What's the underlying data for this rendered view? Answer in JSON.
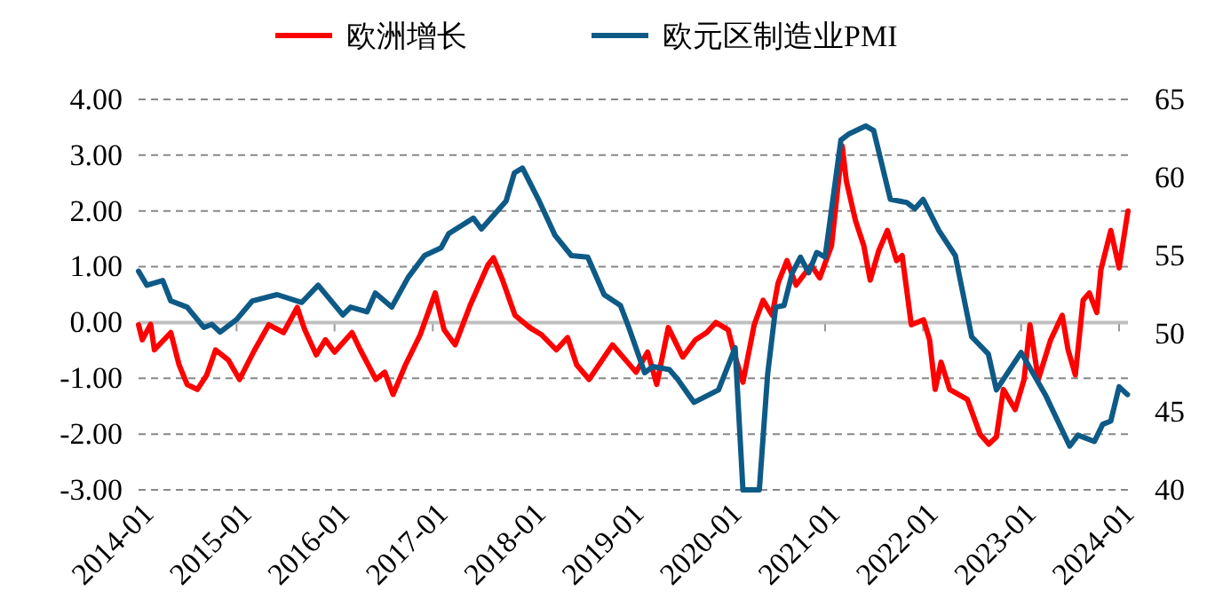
{
  "chart_data": {
    "type": "line",
    "xlim": [
      "2014-01-01",
      "2024-02-03"
    ],
    "xticks": [
      {
        "value": "2014-01-01",
        "label": "2014-01"
      },
      {
        "value": "2015-01-01",
        "label": "2015-01"
      },
      {
        "value": "2016-01-01",
        "label": "2016-01"
      },
      {
        "value": "2017-01-01",
        "label": "2017-01"
      },
      {
        "value": "2018-01-01",
        "label": "2018-01"
      },
      {
        "value": "2019-01-01",
        "label": "2019-01"
      },
      {
        "value": "2020-01-01",
        "label": "2020-01"
      },
      {
        "value": "2021-01-01",
        "label": "2021-01"
      },
      {
        "value": "2022-01-01",
        "label": "2022-01"
      },
      {
        "value": "2023-01-01",
        "label": "2023-01"
      },
      {
        "value": "2024-01-01",
        "label": "2024-01"
      }
    ],
    "ylim": [
      -3,
      4
    ],
    "yticks": [
      {
        "value": -3,
        "label": "-3.00"
      },
      {
        "value": -2,
        "label": "-2.00"
      },
      {
        "value": -1,
        "label": "-1.00"
      },
      {
        "value": 0,
        "label": "0.00"
      },
      {
        "value": 1,
        "label": "1.00"
      },
      {
        "value": 2,
        "label": "2.00"
      },
      {
        "value": 3,
        "label": "3.00"
      },
      {
        "value": 4,
        "label": "4.00"
      }
    ],
    "y2lim": [
      40,
      65
    ],
    "y2ticks": [
      40,
      45,
      50,
      55,
      60,
      65
    ],
    "ref_lines": [
      {
        "axis": "y",
        "value": 0,
        "color": "#bfbfbf"
      }
    ],
    "grid": "y",
    "legend": "top",
    "line_style": "solid",
    "marker": "none",
    "series": [
      {
        "name": "欧洲增长",
        "color": "#ff0000",
        "x": [
          "2014-01-01",
          "2014-01-15",
          "2014-02-15",
          "2014-03-01",
          "2014-05-01",
          "2014-06-01",
          "2014-07-01",
          "2014-08-08",
          "2014-09-12",
          "2014-10-15",
          "2014-12-01",
          "2015-01-12",
          "2015-03-05",
          "2015-05-01",
          "2015-06-25",
          "2015-08-15",
          "2015-09-12",
          "2015-10-25",
          "2015-11-28",
          "2016-01-01",
          "2016-03-06",
          "2016-04-06",
          "2016-06-03",
          "2016-07-06",
          "2016-08-06",
          "2016-09-21",
          "2016-11-15",
          "2017-01-10",
          "2017-02-12",
          "2017-03-25",
          "2017-05-20",
          "2017-07-25",
          "2017-08-15",
          "2017-09-18",
          "2017-11-03",
          "2017-12-28",
          "2018-02-10",
          "2018-04-06",
          "2018-05-18",
          "2018-06-21",
          "2018-08-06",
          "2018-11-01",
          "2019-01-28",
          "2019-03-12",
          "2019-04-15",
          "2019-05-28",
          "2019-07-21",
          "2019-09-06",
          "2019-10-18",
          "2019-11-21",
          "2020-01-06",
          "2020-01-27",
          "2020-03-01",
          "2020-04-12",
          "2020-05-15",
          "2020-06-18",
          "2020-07-10",
          "2020-08-12",
          "2020-09-15",
          "2020-11-10",
          "2020-12-12",
          "2021-01-25",
          "2021-03-06",
          "2021-03-21",
          "2021-04-24",
          "2021-05-25",
          "2021-06-18",
          "2021-07-20",
          "2021-08-21",
          "2021-09-24",
          "2021-10-15",
          "2021-11-18",
          "2022-01-03",
          "2022-01-25",
          "2022-02-15",
          "2022-03-09",
          "2022-04-10",
          "2022-06-15",
          "2022-08-01",
          "2022-09-03",
          "2022-10-01",
          "2022-10-27",
          "2022-12-10",
          "2023-01-12",
          "2023-02-03",
          "2023-03-06",
          "2023-04-21",
          "2023-06-03",
          "2023-06-25",
          "2023-07-22",
          "2023-08-20",
          "2023-09-12",
          "2023-10-10",
          "2023-10-25",
          "2023-12-01",
          "2024-01-01",
          "2024-02-03"
        ],
        "values": [
          -0.04,
          -0.31,
          -0.03,
          -0.49,
          -0.18,
          -0.76,
          -1.11,
          -1.2,
          -0.94,
          -0.49,
          -0.67,
          -1.02,
          -0.53,
          -0.04,
          -0.18,
          0.27,
          -0.13,
          -0.58,
          -0.31,
          -0.53,
          -0.18,
          -0.49,
          -1.02,
          -0.89,
          -1.29,
          -0.76,
          -0.22,
          0.53,
          -0.13,
          -0.4,
          0.31,
          1.03,
          1.16,
          0.76,
          0.13,
          -0.09,
          -0.22,
          -0.49,
          -0.27,
          -0.76,
          -1.02,
          -0.4,
          -0.89,
          -0.53,
          -1.11,
          -0.09,
          -0.62,
          -0.31,
          -0.18,
          0,
          -0.13,
          -0.53,
          -1.07,
          -0.04,
          0.4,
          0.13,
          0.71,
          1.11,
          0.67,
          1.03,
          0.8,
          1.38,
          3.16,
          2.54,
          1.83,
          1.38,
          0.76,
          1.29,
          1.65,
          1.11,
          1.2,
          -0.04,
          0.05,
          -0.31,
          -1.2,
          -0.71,
          -1.2,
          -1.38,
          -2,
          -2.18,
          -2.05,
          -1.2,
          -1.56,
          -1.02,
          -0.04,
          -1.02,
          -0.31,
          0.13,
          -0.49,
          -0.94,
          0.4,
          0.53,
          0.18,
          0.94,
          1.65,
          0.98,
          2
        ]
      },
      {
        "name": "欧元区制造业PMI",
        "color": "#0e5a87",
        "axis": "y2",
        "x": [
          "2014-01",
          "2014-02",
          "2014-04",
          "2014-05",
          "2014-07",
          "2014-09",
          "2014-10",
          "2014-11",
          "2015-01",
          "2015-03",
          "2015-06",
          "2015-09",
          "2015-11",
          "2016-02",
          "2016-03",
          "2016-05",
          "2016-06",
          "2016-08",
          "2016-10",
          "2016-12",
          "2017-02",
          "2017-03",
          "2017-06",
          "2017-07",
          "2017-10",
          "2017-11",
          "2017-12",
          "2018-02",
          "2018-04",
          "2018-06",
          "2018-08",
          "2018-10",
          "2018-12",
          "2019-01",
          "2019-03",
          "2019-04",
          "2019-06",
          "2019-07",
          "2019-09",
          "2019-12",
          "2020-02",
          "2020-03",
          "2020-05",
          "2020-06",
          "2020-07",
          "2020-08",
          "2020-09",
          "2020-10",
          "2020-11",
          "2020-12",
          "2021-01",
          "2021-03",
          "2021-04",
          "2021-06",
          "2021-07",
          "2021-09",
          "2021-11",
          "2021-12",
          "2022-01",
          "2022-03",
          "2022-05",
          "2022-07",
          "2022-09",
          "2022-10",
          "2023-01",
          "2023-04",
          "2023-07",
          "2023-08",
          "2023-10",
          "2023-11",
          "2023-12",
          "2024-01",
          "2024-02"
        ],
        "values": [
          54,
          53.1,
          53.4,
          52.1,
          51.7,
          50.4,
          50.6,
          50.1,
          50.9,
          52.1,
          52.5,
          52,
          53.1,
          51.2,
          51.7,
          51.4,
          52.6,
          51.7,
          53.6,
          55,
          55.5,
          56.4,
          57.4,
          56.7,
          58.5,
          60.3,
          60.6,
          58.5,
          56.3,
          55,
          54.9,
          52.5,
          51.8,
          50.4,
          47.5,
          47.9,
          47.7,
          47.1,
          45.6,
          46.4,
          49.1,
          40,
          40,
          47.4,
          51.7,
          51.8,
          53.9,
          54.9,
          53.9,
          55.2,
          54.9,
          62.4,
          62.8,
          63.3,
          63,
          58.6,
          58.4,
          58,
          58.6,
          56.6,
          55,
          49.8,
          48.7,
          46.4,
          48.8,
          46.1,
          42.8,
          43.5,
          43.1,
          44.2,
          44.4,
          46.6,
          46.1
        ]
      }
    ]
  }
}
